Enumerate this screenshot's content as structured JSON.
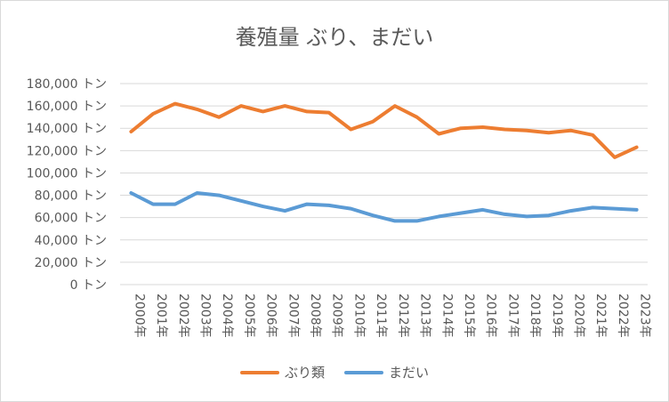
{
  "chart_data": {
    "type": "line",
    "title": "養殖量 ぶり、まだい",
    "xlabel": "",
    "ylabel": "",
    "categories": [
      "2000年",
      "2001年",
      "2002年",
      "2003年",
      "2004年",
      "2005年",
      "2006年",
      "2007年",
      "2008年",
      "2009年",
      "2010年",
      "2011年",
      "2012年",
      "2013年",
      "2014年",
      "2015年",
      "2016年",
      "2017年",
      "2018年",
      "2019年",
      "2020年",
      "2021年",
      "2022年",
      "2023年"
    ],
    "y_ticks": [
      "0 トン",
      "20,000 トン",
      "40,000 トン",
      "60,000 トン",
      "80,000 トン",
      "100,000 トン",
      "120,000 トン",
      "140,000 トン",
      "160,000 トン",
      "180,000 トン"
    ],
    "ylim": [
      0,
      180000
    ],
    "grid": true,
    "legend_position": "bottom",
    "series": [
      {
        "name": "ぶり類",
        "color": "#ed7d31",
        "values": [
          137000,
          153000,
          162000,
          157000,
          150000,
          160000,
          155000,
          160000,
          155000,
          154000,
          139000,
          146000,
          160000,
          150000,
          135000,
          140000,
          141000,
          139000,
          138000,
          136000,
          138000,
          134000,
          114000,
          123000
        ]
      },
      {
        "name": "まだい",
        "color": "#5b9bd5",
        "values": [
          82000,
          72000,
          72000,
          82000,
          80000,
          75000,
          70000,
          66000,
          72000,
          71000,
          68000,
          62000,
          57000,
          57000,
          61000,
          64000,
          67000,
          63000,
          61000,
          62000,
          66000,
          69000,
          68000,
          67000
        ]
      }
    ]
  }
}
